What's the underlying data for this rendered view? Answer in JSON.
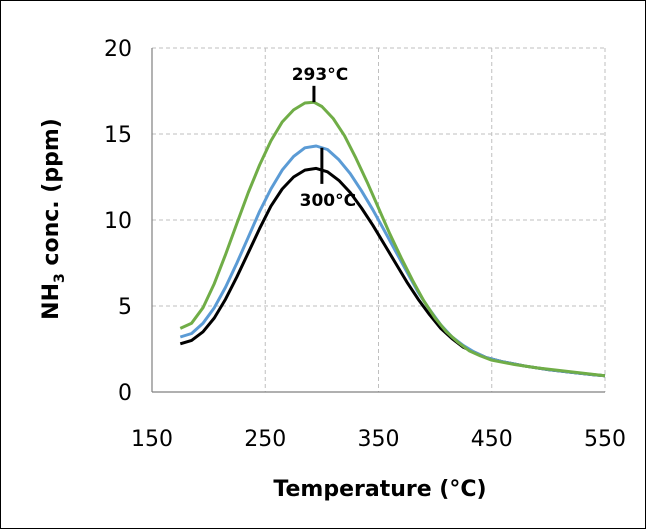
{
  "chart_data": {
    "type": "line",
    "title": "",
    "xlabel": "Temperature (°C)",
    "ylabel_main": "NH",
    "ylabel_sub": "3",
    "ylabel_rest": " conc. (ppm)",
    "xlim": [
      150,
      550
    ],
    "ylim": [
      0,
      20
    ],
    "xticks": [
      150,
      250,
      350,
      450,
      550
    ],
    "yticks": [
      0,
      5,
      10,
      15,
      20
    ],
    "grid": true,
    "legend": "none",
    "series": [
      {
        "color": "#000000",
        "points": [
          [
            175,
            2.8
          ],
          [
            185,
            3.0
          ],
          [
            195,
            3.5
          ],
          [
            205,
            4.3
          ],
          [
            215,
            5.4
          ],
          [
            225,
            6.7
          ],
          [
            235,
            8.1
          ],
          [
            245,
            9.5
          ],
          [
            255,
            10.8
          ],
          [
            265,
            11.8
          ],
          [
            275,
            12.5
          ],
          [
            285,
            12.9
          ],
          [
            295,
            13.0
          ],
          [
            305,
            12.8
          ],
          [
            315,
            12.3
          ],
          [
            325,
            11.6
          ],
          [
            335,
            10.7
          ],
          [
            345,
            9.7
          ],
          [
            355,
            8.6
          ],
          [
            365,
            7.5
          ],
          [
            375,
            6.4
          ],
          [
            385,
            5.4
          ],
          [
            395,
            4.5
          ],
          [
            405,
            3.7
          ],
          [
            415,
            3.1
          ],
          [
            425,
            2.6
          ],
          [
            435,
            2.3
          ],
          [
            445,
            2.0
          ],
          [
            460,
            1.75
          ],
          [
            480,
            1.5
          ],
          [
            500,
            1.3
          ],
          [
            520,
            1.15
          ],
          [
            540,
            1.0
          ],
          [
            550,
            0.95
          ]
        ]
      },
      {
        "color": "#5b9bd5",
        "points": [
          [
            175,
            3.2
          ],
          [
            185,
            3.4
          ],
          [
            195,
            4.0
          ],
          [
            205,
            4.9
          ],
          [
            215,
            6.1
          ],
          [
            225,
            7.5
          ],
          [
            235,
            9.0
          ],
          [
            245,
            10.5
          ],
          [
            255,
            11.8
          ],
          [
            265,
            12.9
          ],
          [
            275,
            13.7
          ],
          [
            285,
            14.2
          ],
          [
            295,
            14.3
          ],
          [
            305,
            14.1
          ],
          [
            315,
            13.5
          ],
          [
            325,
            12.7
          ],
          [
            335,
            11.7
          ],
          [
            345,
            10.6
          ],
          [
            355,
            9.4
          ],
          [
            365,
            8.2
          ],
          [
            375,
            7.0
          ],
          [
            385,
            5.8
          ],
          [
            395,
            4.8
          ],
          [
            405,
            3.9
          ],
          [
            415,
            3.2
          ],
          [
            425,
            2.7
          ],
          [
            435,
            2.3
          ],
          [
            445,
            2.0
          ],
          [
            460,
            1.75
          ],
          [
            480,
            1.5
          ],
          [
            500,
            1.3
          ],
          [
            520,
            1.15
          ],
          [
            540,
            1.0
          ],
          [
            550,
            0.95
          ]
        ]
      },
      {
        "color": "#70ad47",
        "points": [
          [
            175,
            3.7
          ],
          [
            185,
            4.0
          ],
          [
            195,
            4.9
          ],
          [
            205,
            6.3
          ],
          [
            215,
            8.0
          ],
          [
            225,
            9.8
          ],
          [
            235,
            11.6
          ],
          [
            245,
            13.2
          ],
          [
            255,
            14.6
          ],
          [
            265,
            15.7
          ],
          [
            275,
            16.4
          ],
          [
            285,
            16.8
          ],
          [
            293,
            16.85
          ],
          [
            300,
            16.6
          ],
          [
            310,
            15.9
          ],
          [
            320,
            14.9
          ],
          [
            330,
            13.6
          ],
          [
            340,
            12.2
          ],
          [
            350,
            10.7
          ],
          [
            360,
            9.2
          ],
          [
            370,
            7.8
          ],
          [
            380,
            6.5
          ],
          [
            390,
            5.3
          ],
          [
            400,
            4.3
          ],
          [
            410,
            3.5
          ],
          [
            420,
            2.9
          ],
          [
            430,
            2.4
          ],
          [
            440,
            2.1
          ],
          [
            450,
            1.85
          ],
          [
            470,
            1.6
          ],
          [
            490,
            1.4
          ],
          [
            510,
            1.25
          ],
          [
            530,
            1.1
          ],
          [
            550,
            0.95
          ]
        ]
      }
    ],
    "annotations": [
      {
        "text": "293°C",
        "x": 293,
        "y_from": 16.85,
        "y_to": 17.8
      },
      {
        "text": "300°C",
        "x": 300,
        "y_from": 12.1,
        "y_to": 14.2
      }
    ]
  }
}
